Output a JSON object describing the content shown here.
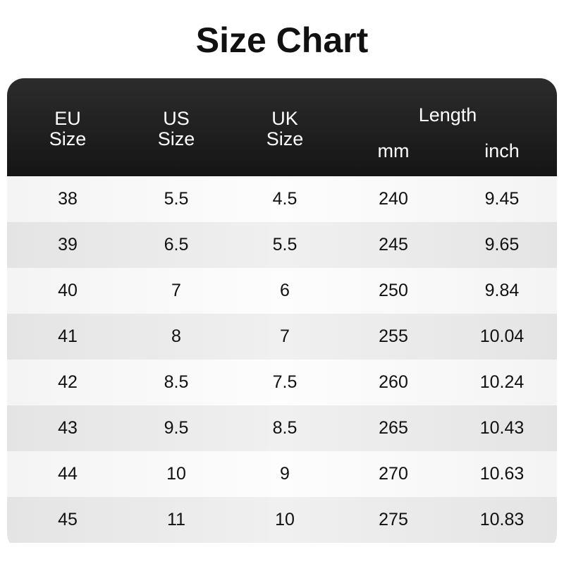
{
  "title": "Size Chart",
  "header": {
    "eu": [
      "EU",
      "Size"
    ],
    "us": [
      "US",
      "Size"
    ],
    "uk": [
      "UK",
      "Size"
    ],
    "length": "Length",
    "mm": "mm",
    "inch": "inch"
  },
  "rows": [
    [
      "38",
      "5.5",
      "4.5",
      "240",
      "9.45"
    ],
    [
      "39",
      "6.5",
      "5.5",
      "245",
      "9.65"
    ],
    [
      "40",
      "7",
      "6",
      "250",
      "9.84"
    ],
    [
      "41",
      "8",
      "7",
      "255",
      "10.04"
    ],
    [
      "42",
      "8.5",
      "7.5",
      "260",
      "10.24"
    ],
    [
      "43",
      "9.5",
      "8.5",
      "265",
      "10.43"
    ],
    [
      "44",
      "10",
      "9",
      "270",
      "10.63"
    ],
    [
      "45",
      "11",
      "10",
      "275",
      "10.83"
    ]
  ]
}
